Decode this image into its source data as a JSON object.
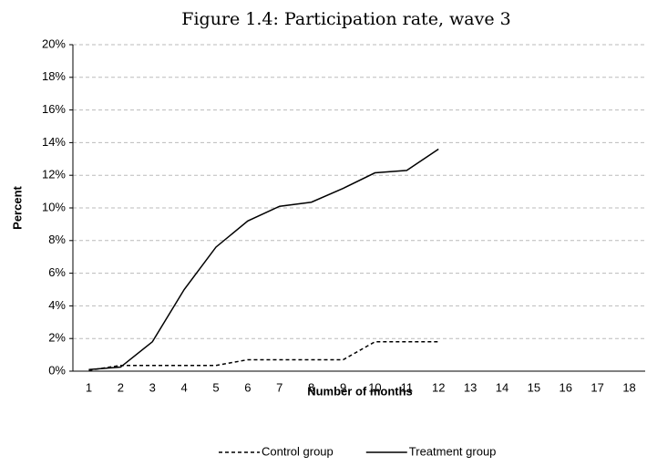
{
  "chart_data": {
    "type": "line",
    "title": "Figure 1.4: Participation rate, wave 3",
    "xlabel": "Number of months",
    "ylabel": "Percent",
    "categories": [
      "1",
      "2",
      "3",
      "4",
      "5",
      "6",
      "7",
      "8",
      "9",
      "10",
      "11",
      "12",
      "13",
      "14",
      "15",
      "16",
      "17",
      "18"
    ],
    "series": [
      {
        "name": "Control group",
        "color": "#000000",
        "style": "dashed",
        "values": [
          0.05,
          0.35,
          0.35,
          0.35,
          0.35,
          0.7,
          0.7,
          0.7,
          0.7,
          1.8,
          1.8,
          1.8,
          null,
          null,
          null,
          null,
          null,
          null
        ]
      },
      {
        "name": "Treatment group",
        "color": "#000000",
        "style": "solid",
        "values": [
          0.1,
          0.25,
          1.8,
          5.0,
          7.6,
          9.2,
          10.1,
          10.35,
          11.2,
          12.15,
          12.3,
          13.6,
          null,
          null,
          null,
          null,
          null,
          null
        ]
      }
    ],
    "ylim": [
      0,
      20
    ],
    "yticks": [
      {
        "value": 0,
        "label": "0%"
      },
      {
        "value": 2,
        "label": "2%"
      },
      {
        "value": 4,
        "label": "4%"
      },
      {
        "value": 6,
        "label": "6%"
      },
      {
        "value": 8,
        "label": "8%"
      },
      {
        "value": 10,
        "label": "10%"
      },
      {
        "value": 12,
        "label": "12%"
      },
      {
        "value": 14,
        "label": "14%"
      },
      {
        "value": 16,
        "label": "16%"
      },
      {
        "value": 18,
        "label": "18%"
      },
      {
        "value": 20,
        "label": "20%"
      }
    ],
    "grid": true,
    "legend": "bottom"
  }
}
